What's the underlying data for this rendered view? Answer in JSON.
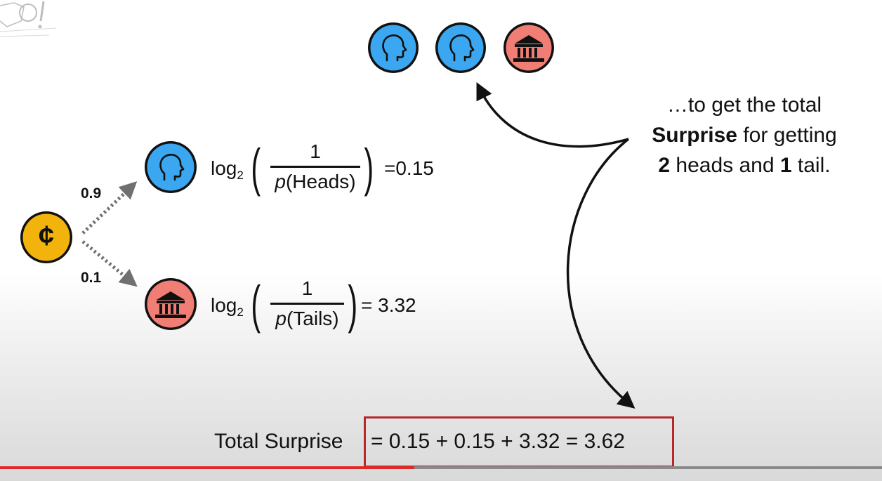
{
  "diagram": {
    "coin_symbol": "¢",
    "branches": [
      {
        "probability": "0.9",
        "outcome": "Heads",
        "icon": "heads-icon"
      },
      {
        "probability": "0.1",
        "outcome": "Tails",
        "icon": "tails-icon"
      }
    ],
    "heads_formula": {
      "log": "log",
      "base": "2",
      "numerator": "1",
      "p": "p",
      "den": "(Heads)",
      "result": "=0.15"
    },
    "tails_formula": {
      "log": "log",
      "base": "2",
      "numerator": "1",
      "p": "p",
      "den": "(Tails)",
      "result": "= 3.32"
    },
    "note": {
      "line1": "…to get the total",
      "line2_bold": "Surprise",
      "line2_rest": " for getting",
      "line3_bold_a": "2",
      "line3_mid": " heads and ",
      "line3_bold_b": "1",
      "line3_rest": " tail."
    },
    "total": {
      "label": "Total Surprise",
      "equation": "= 0.15 + 0.15 + 3.32 = 3.62"
    },
    "colors": {
      "heads": "#3aa7f0",
      "tails": "#f07e75",
      "coin": "#f2b40c",
      "highlight": "#b8282a",
      "progress": "#e02a2a"
    }
  },
  "player": {
    "progress_percent": 47
  }
}
